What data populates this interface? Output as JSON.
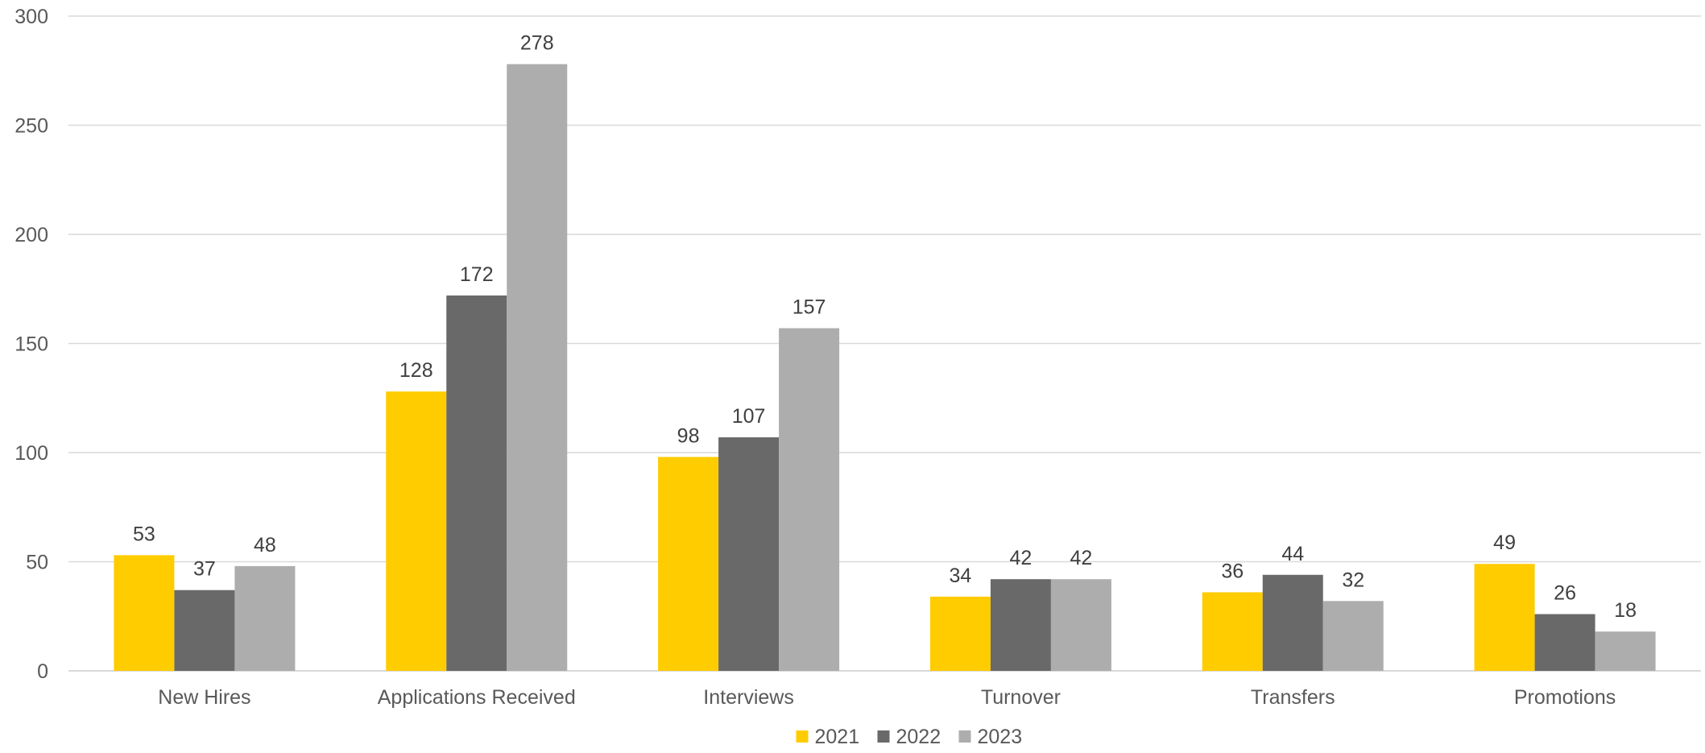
{
  "chart_data": {
    "type": "bar",
    "title": "",
    "xlabel": "",
    "ylabel": "",
    "categories": [
      "New Hires",
      "Applications Received",
      "Interviews",
      "Turnover",
      "Transfers",
      "Promotions"
    ],
    "series": [
      {
        "name": "2021",
        "color": "#FFCC00",
        "values": [
          53,
          128,
          98,
          34,
          36,
          49
        ]
      },
      {
        "name": "2022",
        "color": "#696969",
        "values": [
          37,
          172,
          107,
          42,
          44,
          26
        ]
      },
      {
        "name": "2023",
        "color": "#ADADAD",
        "values": [
          48,
          278,
          157,
          42,
          32,
          18
        ]
      }
    ],
    "ylim": [
      0,
      300
    ],
    "yticks": [
      0,
      50,
      100,
      150,
      200,
      250,
      300
    ],
    "grid": true,
    "legend_position": "bottom-center",
    "data_labels": true
  }
}
